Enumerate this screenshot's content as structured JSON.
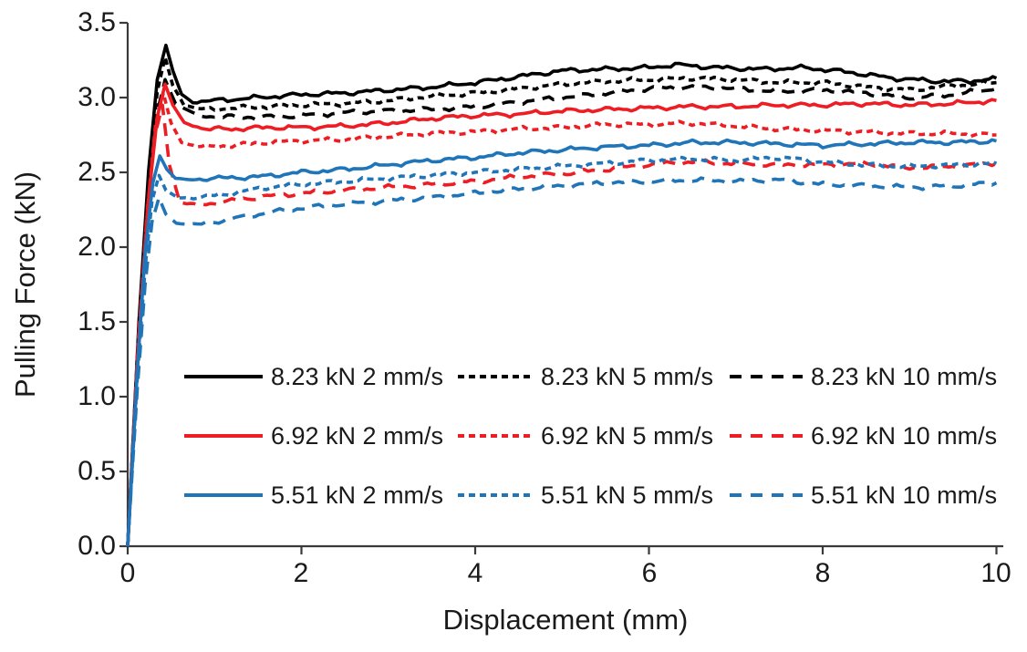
{
  "chart_data": {
    "type": "line",
    "title": "",
    "xlabel": "Displacement (mm)",
    "ylabel": "Pulling Force (kN)",
    "xlim": [
      0,
      10
    ],
    "ylim": [
      0,
      3.5
    ],
    "xticks": [
      0,
      2,
      4,
      6,
      8,
      10
    ],
    "yticks": [
      0,
      0.5,
      1,
      1.5,
      2,
      2.5,
      3,
      3.5
    ],
    "xtick_labels": [
      "0",
      "2",
      "4",
      "6",
      "8",
      "10"
    ],
    "ytick_labels": [
      "0.0",
      "0.5",
      "1.0",
      "1.5",
      "2.0",
      "2.5",
      "3.0",
      "3.5"
    ],
    "grid": false,
    "legend_position": "inside-lower-center-3-columns",
    "axis_color": "#3a3a3a",
    "text_color": "#1a1a1a",
    "series": [
      {
        "name": "8.23 kN 2 mm/s",
        "color": "#000000",
        "style": "solid",
        "points": [
          [
            0,
            0
          ],
          [
            0.13,
            1.51
          ],
          [
            0.24,
            2.51
          ],
          [
            0.34,
            3.12
          ],
          [
            0.44,
            3.35
          ],
          [
            0.52,
            3.18
          ],
          [
            0.62,
            3.02
          ],
          [
            0.75,
            2.97
          ],
          [
            1.0,
            2.98
          ],
          [
            1.5,
            3.0
          ],
          [
            2,
            3.02
          ],
          [
            2.5,
            3.03
          ],
          [
            3,
            3.05
          ],
          [
            3.5,
            3.07
          ],
          [
            4,
            3.1
          ],
          [
            4.5,
            3.14
          ],
          [
            5,
            3.18
          ],
          [
            5.5,
            3.19
          ],
          [
            6,
            3.2
          ],
          [
            6.3,
            3.22
          ],
          [
            6.8,
            3.2
          ],
          [
            7.3,
            3.19
          ],
          [
            7.8,
            3.2
          ],
          [
            8.3,
            3.17
          ],
          [
            8.8,
            3.13
          ],
          [
            9.3,
            3.11
          ],
          [
            9.7,
            3.11
          ],
          [
            10,
            3.13
          ]
        ]
      },
      {
        "name": "8.23 kN 5 mm/s",
        "color": "#000000",
        "style": "dot",
        "points": [
          [
            0,
            0
          ],
          [
            0.13,
            1.47
          ],
          [
            0.24,
            2.45
          ],
          [
            0.34,
            3.04
          ],
          [
            0.43,
            3.27
          ],
          [
            0.52,
            3.08
          ],
          [
            0.65,
            2.95
          ],
          [
            0.85,
            2.92
          ],
          [
            1.2,
            2.93
          ],
          [
            1.6,
            2.94
          ],
          [
            2,
            2.95
          ],
          [
            2.5,
            2.96
          ],
          [
            3,
            2.98
          ],
          [
            3.5,
            3.01
          ],
          [
            4,
            3.03
          ],
          [
            4.5,
            3.06
          ],
          [
            5,
            3.09
          ],
          [
            5.5,
            3.11
          ],
          [
            6,
            3.12
          ],
          [
            6.5,
            3.13
          ],
          [
            7,
            3.12
          ],
          [
            7.5,
            3.1
          ],
          [
            8,
            3.1
          ],
          [
            8.5,
            3.07
          ],
          [
            9,
            3.05
          ],
          [
            9.5,
            3.08
          ],
          [
            10,
            3.1
          ]
        ]
      },
      {
        "name": "8.23 kN 10 mm/s",
        "color": "#000000",
        "style": "dash",
        "points": [
          [
            0,
            0
          ],
          [
            0.13,
            1.4
          ],
          [
            0.24,
            2.34
          ],
          [
            0.34,
            2.9
          ],
          [
            0.43,
            3.12
          ],
          [
            0.55,
            2.96
          ],
          [
            0.8,
            2.88
          ],
          [
            1.2,
            2.87
          ],
          [
            1.6,
            2.87
          ],
          [
            2,
            2.88
          ],
          [
            2.5,
            2.9
          ],
          [
            3,
            2.91
          ],
          [
            3.5,
            2.92
          ],
          [
            4,
            2.94
          ],
          [
            4.5,
            2.97
          ],
          [
            5,
            3.0
          ],
          [
            5.5,
            3.03
          ],
          [
            6,
            3.06
          ],
          [
            6.5,
            3.07
          ],
          [
            7,
            3.06
          ],
          [
            7.5,
            3.04
          ],
          [
            8,
            3.05
          ],
          [
            8.5,
            3.03
          ],
          [
            9,
            3.0
          ],
          [
            9.5,
            3.02
          ],
          [
            10,
            3.06
          ]
        ]
      },
      {
        "name": "6.92 kN 2 mm/s",
        "color": "#ee1c23",
        "style": "solid",
        "points": [
          [
            0,
            0
          ],
          [
            0.13,
            1.39
          ],
          [
            0.24,
            2.32
          ],
          [
            0.34,
            2.87
          ],
          [
            0.43,
            3.09
          ],
          [
            0.52,
            2.95
          ],
          [
            0.65,
            2.83
          ],
          [
            0.9,
            2.79
          ],
          [
            1.2,
            2.79
          ],
          [
            1.6,
            2.8
          ],
          [
            2,
            2.8
          ],
          [
            2.5,
            2.81
          ],
          [
            3,
            2.83
          ],
          [
            3.5,
            2.86
          ],
          [
            4,
            2.88
          ],
          [
            4.5,
            2.89
          ],
          [
            5,
            2.91
          ],
          [
            5.5,
            2.92
          ],
          [
            6,
            2.93
          ],
          [
            6.5,
            2.94
          ],
          [
            7,
            2.94
          ],
          [
            7.5,
            2.95
          ],
          [
            8,
            2.95
          ],
          [
            8.5,
            2.96
          ],
          [
            9,
            2.95
          ],
          [
            9.5,
            2.96
          ],
          [
            10,
            2.98
          ]
        ]
      },
      {
        "name": "6.92 kN 5 mm/s",
        "color": "#ee1c23",
        "style": "dot",
        "points": [
          [
            0,
            0
          ],
          [
            0.12,
            1.36
          ],
          [
            0.23,
            2.27
          ],
          [
            0.32,
            2.82
          ],
          [
            0.41,
            3.03
          ],
          [
            0.5,
            2.83
          ],
          [
            0.62,
            2.7
          ],
          [
            0.85,
            2.67
          ],
          [
            1.2,
            2.68
          ],
          [
            1.6,
            2.7
          ],
          [
            2,
            2.71
          ],
          [
            2.5,
            2.72
          ],
          [
            3,
            2.74
          ],
          [
            3.5,
            2.76
          ],
          [
            4,
            2.77
          ],
          [
            4.5,
            2.79
          ],
          [
            5,
            2.8
          ],
          [
            5.5,
            2.82
          ],
          [
            6,
            2.82
          ],
          [
            6.5,
            2.83
          ],
          [
            7,
            2.81
          ],
          [
            7.5,
            2.79
          ],
          [
            8,
            2.78
          ],
          [
            8.5,
            2.77
          ],
          [
            9,
            2.76
          ],
          [
            9.5,
            2.76
          ],
          [
            10,
            2.75
          ]
        ]
      },
      {
        "name": "6.92 kN 10 mm/s",
        "color": "#ee1c23",
        "style": "dash",
        "points": [
          [
            0,
            0
          ],
          [
            0.12,
            1.33
          ],
          [
            0.22,
            2.21
          ],
          [
            0.31,
            2.74
          ],
          [
            0.4,
            2.95
          ],
          [
            0.48,
            2.55
          ],
          [
            0.6,
            2.3
          ],
          [
            0.8,
            2.28
          ],
          [
            1.2,
            2.31
          ],
          [
            1.6,
            2.34
          ],
          [
            2,
            2.36
          ],
          [
            2.5,
            2.38
          ],
          [
            3,
            2.4
          ],
          [
            3.5,
            2.42
          ],
          [
            4,
            2.44
          ],
          [
            4.5,
            2.47
          ],
          [
            5,
            2.49
          ],
          [
            5.5,
            2.52
          ],
          [
            6,
            2.55
          ],
          [
            6.5,
            2.57
          ],
          [
            7,
            2.56
          ],
          [
            7.5,
            2.55
          ],
          [
            8,
            2.55
          ],
          [
            8.5,
            2.56
          ],
          [
            9,
            2.53
          ],
          [
            9.5,
            2.54
          ],
          [
            10,
            2.56
          ]
        ]
      },
      {
        "name": "5.51 kN 2 mm/s",
        "color": "#2075b8",
        "style": "solid",
        "points": [
          [
            0,
            0
          ],
          [
            0.11,
            1.17
          ],
          [
            0.2,
            1.96
          ],
          [
            0.29,
            2.43
          ],
          [
            0.37,
            2.61
          ],
          [
            0.45,
            2.52
          ],
          [
            0.55,
            2.46
          ],
          [
            0.7,
            2.45
          ],
          [
            1.0,
            2.46
          ],
          [
            1.5,
            2.47
          ],
          [
            2,
            2.5
          ],
          [
            2.5,
            2.52
          ],
          [
            3,
            2.55
          ],
          [
            3.5,
            2.58
          ],
          [
            4,
            2.6
          ],
          [
            4.5,
            2.63
          ],
          [
            5,
            2.65
          ],
          [
            5.5,
            2.67
          ],
          [
            6,
            2.68
          ],
          [
            6.5,
            2.7
          ],
          [
            7,
            2.7
          ],
          [
            7.5,
            2.69
          ],
          [
            8,
            2.68
          ],
          [
            8.5,
            2.69
          ],
          [
            9,
            2.7
          ],
          [
            9.5,
            2.7
          ],
          [
            10,
            2.71
          ]
        ]
      },
      {
        "name": "5.51 kN 5 mm/s",
        "color": "#2075b8",
        "style": "dot",
        "points": [
          [
            0,
            0
          ],
          [
            0.11,
            1.12
          ],
          [
            0.2,
            1.86
          ],
          [
            0.28,
            2.31
          ],
          [
            0.36,
            2.48
          ],
          [
            0.44,
            2.38
          ],
          [
            0.58,
            2.33
          ],
          [
            0.8,
            2.33
          ],
          [
            1.2,
            2.36
          ],
          [
            1.6,
            2.4
          ],
          [
            2,
            2.42
          ],
          [
            2.5,
            2.44
          ],
          [
            3,
            2.46
          ],
          [
            3.5,
            2.48
          ],
          [
            4,
            2.5
          ],
          [
            4.5,
            2.52
          ],
          [
            5,
            2.54
          ],
          [
            5.5,
            2.56
          ],
          [
            6,
            2.58
          ],
          [
            6.5,
            2.59
          ],
          [
            7,
            2.58
          ],
          [
            7.5,
            2.6
          ],
          [
            8,
            2.57
          ],
          [
            8.5,
            2.55
          ],
          [
            9,
            2.54
          ],
          [
            9.5,
            2.55
          ],
          [
            10,
            2.56
          ]
        ]
      },
      {
        "name": "5.51 kN 10 mm/s",
        "color": "#2075b8",
        "style": "dash",
        "points": [
          [
            0,
            0
          ],
          [
            0.11,
            1.05
          ],
          [
            0.2,
            1.75
          ],
          [
            0.28,
            2.17
          ],
          [
            0.36,
            2.33
          ],
          [
            0.44,
            2.22
          ],
          [
            0.56,
            2.16
          ],
          [
            0.8,
            2.15
          ],
          [
            1.2,
            2.19
          ],
          [
            1.6,
            2.23
          ],
          [
            2,
            2.26
          ],
          [
            2.5,
            2.29
          ],
          [
            3,
            2.31
          ],
          [
            3.5,
            2.33
          ],
          [
            4,
            2.36
          ],
          [
            4.5,
            2.39
          ],
          [
            5,
            2.41
          ],
          [
            5.5,
            2.43
          ],
          [
            6,
            2.44
          ],
          [
            6.5,
            2.45
          ],
          [
            7,
            2.44
          ],
          [
            7.5,
            2.45
          ],
          [
            8,
            2.42
          ],
          [
            8.5,
            2.41
          ],
          [
            9,
            2.4
          ],
          [
            9.5,
            2.41
          ],
          [
            10,
            2.43
          ]
        ]
      }
    ]
  }
}
